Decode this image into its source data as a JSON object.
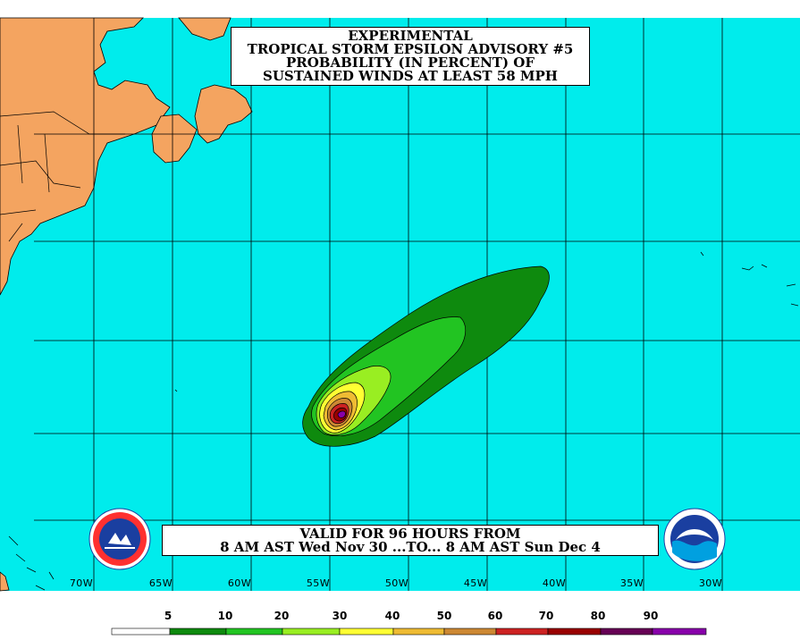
{
  "title": {
    "line1": "EXPERIMENTAL",
    "line2": "TROPICAL STORM EPSILON ADVISORY #5",
    "line3": "PROBABILITY (IN PERCENT) OF",
    "line4": "SUSTAINED WINDS AT LEAST 58 MPH"
  },
  "validity": {
    "line1": "VALID FOR 96 HOURS FROM",
    "line2": "8 AM AST Wed Nov 30 ...TO... 8 AM AST Sun Dec 4"
  },
  "longitude_labels": [
    "70W",
    "65W",
    "60W",
    "55W",
    "50W",
    "45W",
    "40W",
    "35W",
    "30W"
  ],
  "legend": {
    "labels": [
      "5",
      "10",
      "20",
      "30",
      "40",
      "50",
      "60",
      "70",
      "80",
      "90"
    ],
    "colors": [
      "#ffffff",
      "#0e8a0e",
      "#22c422",
      "#99ee22",
      "#ffff33",
      "#eebb33",
      "#cc8833",
      "#cc2222",
      "#990000",
      "#660055",
      "#8800aa"
    ]
  },
  "colors": {
    "ocean": "#00ecec",
    "land": "#f4a460",
    "grid": "#000000"
  },
  "logos": {
    "left": "national-weather-service-logo",
    "right": "noaa-logo"
  }
}
